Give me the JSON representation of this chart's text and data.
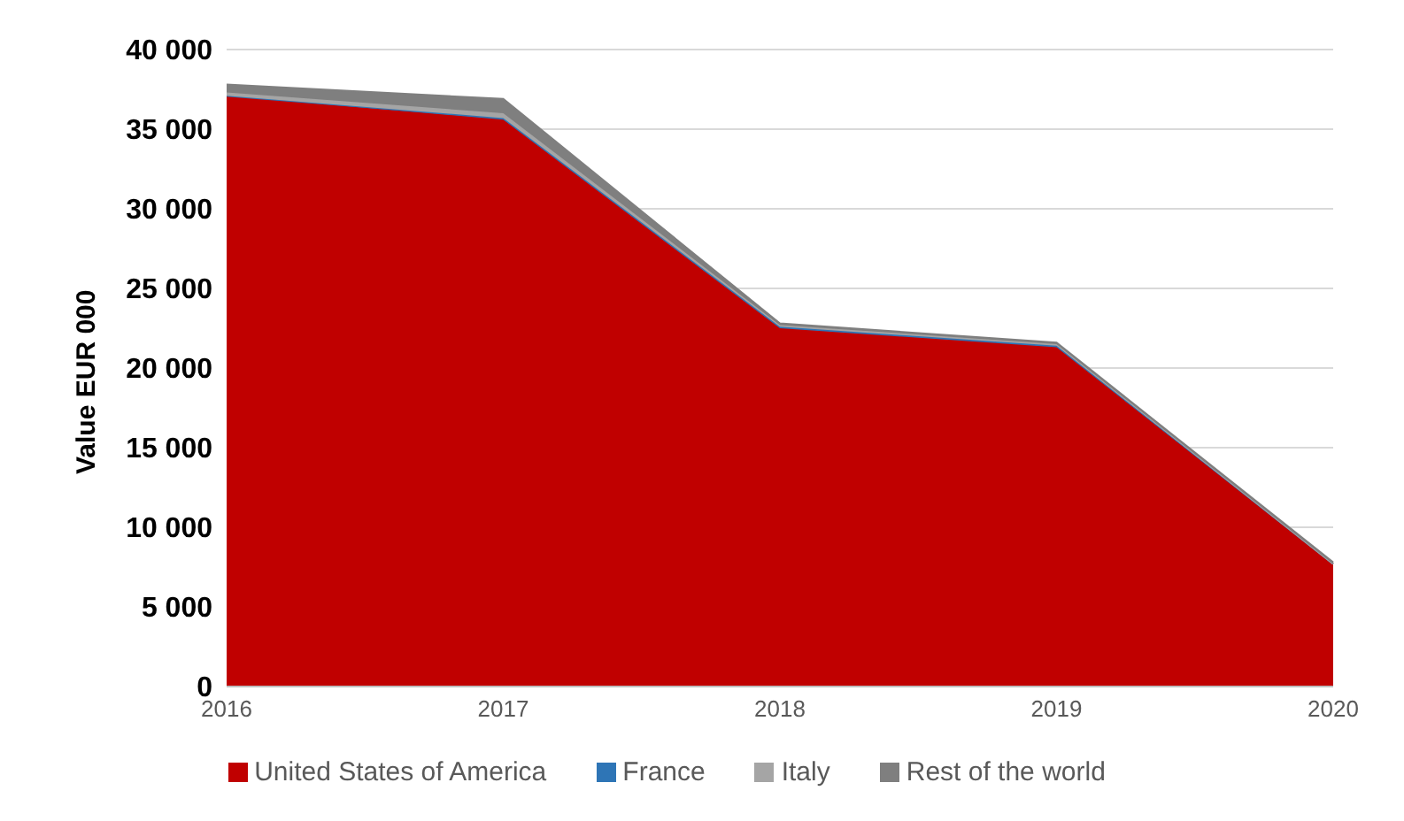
{
  "chart_data": {
    "type": "area",
    "stacked": true,
    "ylabel": "Value EUR 000",
    "categories": [
      "2016",
      "2017",
      "2018",
      "2019",
      "2020"
    ],
    "series": [
      {
        "name": "United States of America",
        "color": "#c00000",
        "values": [
          37100,
          35600,
          22500,
          21300,
          7700
        ]
      },
      {
        "name": "France",
        "color": "#2e75b6",
        "values": [
          0,
          100,
          100,
          100,
          0
        ]
      },
      {
        "name": "Italy",
        "color": "#a5a5a5",
        "values": [
          200,
          300,
          100,
          100,
          0
        ]
      },
      {
        "name": "Rest of the world",
        "color": "#7f7f7f",
        "values": [
          500,
          900,
          100,
          100,
          100
        ]
      }
    ],
    "ylim": [
      0,
      40000
    ],
    "yticks": [
      {
        "value": 0,
        "label": "0"
      },
      {
        "value": 5000,
        "label": "5 000"
      },
      {
        "value": 10000,
        "label": "10 000"
      },
      {
        "value": 15000,
        "label": "15 000"
      },
      {
        "value": 20000,
        "label": "20 000"
      },
      {
        "value": 25000,
        "label": "25 000"
      },
      {
        "value": 30000,
        "label": "30 000"
      },
      {
        "value": 35000,
        "label": "35 000"
      },
      {
        "value": 40000,
        "label": "40 000"
      }
    ],
    "grid": "y",
    "legend": "bottom"
  }
}
